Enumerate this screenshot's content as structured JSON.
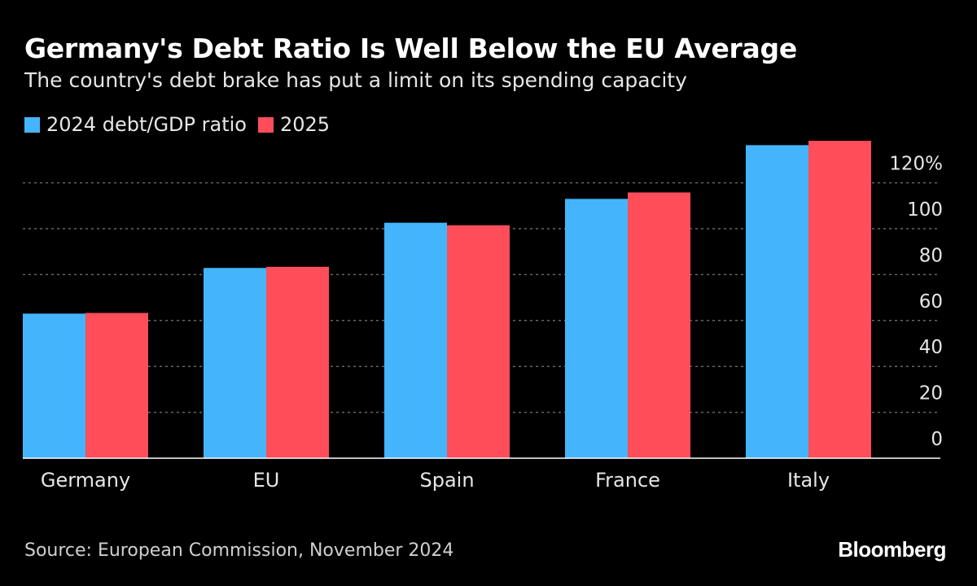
{
  "header": {
    "title": "Germany's Debt Ratio Is Well Below the EU Average",
    "subtitle": "The country's debt brake has put a limit on its spending capacity"
  },
  "footer": {
    "source": "Source: European Commission, November 2024",
    "brand": "Bloomberg"
  },
  "colors": {
    "background": "#000000",
    "series_2024": "#44b5fc",
    "series_2025": "#ff4d5a",
    "gridline": "#666666",
    "axis_text": "#e6e6e6"
  },
  "chart_data": {
    "type": "bar",
    "categories": [
      "Germany",
      "EU",
      "Spain",
      "France",
      "Italy"
    ],
    "series": [
      {
        "name": "2024 debt/GDP ratio",
        "values": [
          63.0,
          82.9,
          102.6,
          113.0,
          136.4
        ]
      },
      {
        "name": "2025",
        "values": [
          63.3,
          83.4,
          101.5,
          115.8,
          138.3
        ]
      }
    ],
    "y_ticks": [
      "0",
      "20",
      "40",
      "60",
      "80",
      "100",
      "120%"
    ],
    "y_tick_values": [
      0,
      20,
      40,
      60,
      80,
      100,
      120
    ],
    "ylim": [
      0,
      140
    ],
    "y_axis_side": "right",
    "grid": true,
    "legend_placement": "top-left"
  }
}
